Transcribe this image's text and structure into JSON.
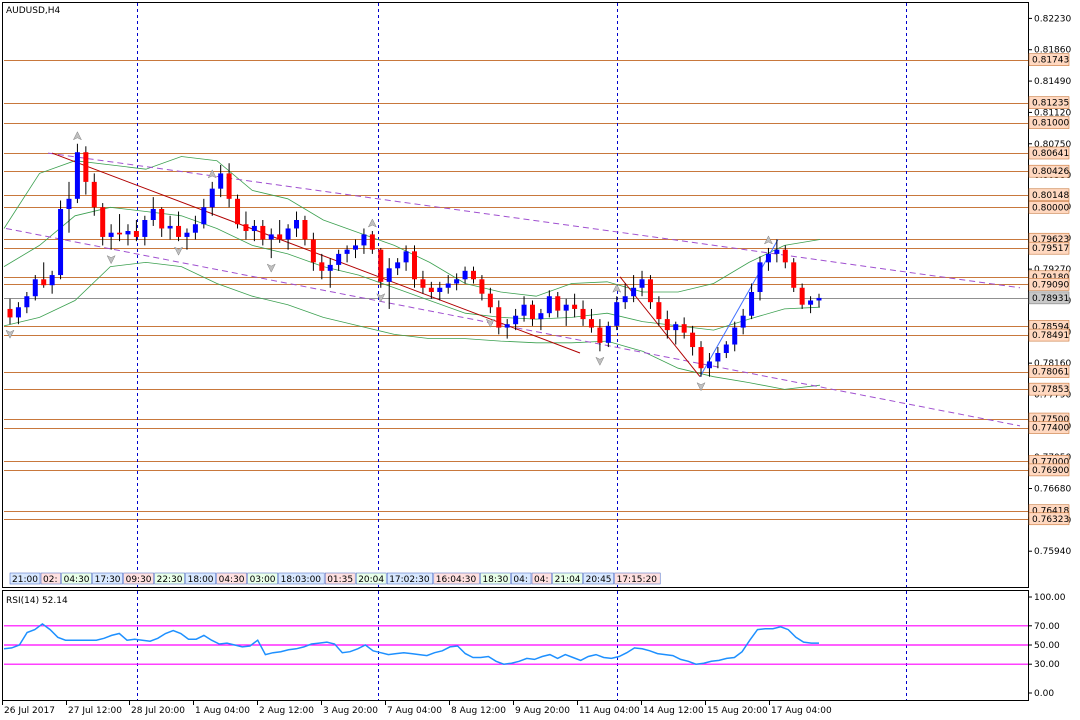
{
  "window": {
    "title": "AUDUSD,H4"
  },
  "colors": {
    "bull": "#0000ff",
    "bear": "#ff0000",
    "hline": "#c8783c",
    "channel": "#a050d0",
    "bands": "#3ca050",
    "trend_down": "#b00000",
    "trend_up": "#4070ff",
    "grid": "#0000cc",
    "rsi_line": "#1e90ff",
    "rsi_levels": "#ff00ff",
    "box_fill": "#ffd8c0",
    "bid_box": "#c8c8c8"
  },
  "chart_data": [
    {
      "type": "candlestick",
      "title": "AUDUSD,H4",
      "ylim": [
        0.756,
        0.824
      ],
      "x_range": [
        0,
        1000
      ],
      "price_axis_ticks": [
        "0.82230",
        "0.81860",
        "0.81490",
        "0.81120",
        "0.80750",
        "0.80380",
        "0.80010",
        "0.79640",
        "0.79270",
        "0.78900",
        "0.78530",
        "0.78160",
        "0.77790",
        "0.77420",
        "0.77050",
        "0.76680",
        "0.76310",
        "0.75940"
      ],
      "time_axis_labels": [
        "26 Jul 2017",
        "27 Jul 12:00",
        "28 Jul 20:00",
        "1 Aug 04:00",
        "2 Aug 12:00",
        "3 Aug 20:00",
        "7 Aug 04:00",
        "8 Aug 12:00",
        "9 Aug 20:00",
        "11 Aug 04:00",
        "14 Aug 12:00",
        "15 Aug 20:00",
        "17 Aug 04:00"
      ],
      "horizontal_levels": [
        "0.81743",
        "0.81235",
        "0.81000",
        "0.80641",
        "0.80426",
        "0.80148",
        "0.80000",
        "0.79623",
        "0.79517",
        "0.79180",
        "0.79090",
        "0.78931",
        "0.78594",
        "0.78491",
        "0.78061",
        "0.77853",
        "0.77500",
        "0.77400",
        "0.77000",
        "0.76900",
        "0.76418",
        "0.76323"
      ],
      "current_price": "0.78931",
      "candles": [
        [
          0.788,
          0.7892,
          0.7862,
          0.787
        ],
        [
          0.787,
          0.7888,
          0.7862,
          0.7882
        ],
        [
          0.7882,
          0.79,
          0.7875,
          0.7895
        ],
        [
          0.7895,
          0.792,
          0.789,
          0.7915
        ],
        [
          0.7915,
          0.7935,
          0.7905,
          0.7908
        ],
        [
          0.7908,
          0.7925,
          0.7898,
          0.792
        ],
        [
          0.792,
          0.8008,
          0.7915,
          0.7998
        ],
        [
          0.7998,
          0.803,
          0.797,
          0.801
        ],
        [
          0.801,
          0.8075,
          0.8005,
          0.8065
        ],
        [
          0.8065,
          0.8072,
          0.8015,
          0.803
        ],
        [
          0.803,
          0.804,
          0.799,
          0.8
        ],
        [
          0.8,
          0.8005,
          0.7955,
          0.7965
        ],
        [
          0.7965,
          0.798,
          0.795,
          0.797
        ],
        [
          0.797,
          0.7992,
          0.796,
          0.7968
        ],
        [
          0.7968,
          0.798,
          0.7955,
          0.7972
        ],
        [
          0.7972,
          0.7985,
          0.796,
          0.7965
        ],
        [
          0.7965,
          0.799,
          0.7955,
          0.7985
        ],
        [
          0.7985,
          0.8012,
          0.7978,
          0.7998
        ],
        [
          0.7998,
          0.8,
          0.7965,
          0.7975
        ],
        [
          0.7975,
          0.799,
          0.7962,
          0.7978
        ],
        [
          0.7978,
          0.7995,
          0.796,
          0.7965
        ],
        [
          0.7965,
          0.7975,
          0.795,
          0.797
        ],
        [
          0.797,
          0.799,
          0.7962,
          0.798
        ],
        [
          0.798,
          0.801,
          0.7975,
          0.8
        ],
        [
          0.8,
          0.803,
          0.799,
          0.8022
        ],
        [
          0.8022,
          0.805,
          0.8012,
          0.804
        ],
        [
          0.804,
          0.8052,
          0.8,
          0.801
        ],
        [
          0.801,
          0.8015,
          0.7975,
          0.798
        ],
        [
          0.798,
          0.7995,
          0.7962,
          0.7972
        ],
        [
          0.7972,
          0.7985,
          0.796,
          0.7978
        ],
        [
          0.7978,
          0.7985,
          0.7955,
          0.7962
        ],
        [
          0.7962,
          0.7975,
          0.794,
          0.7968
        ],
        [
          0.7968,
          0.7985,
          0.7958,
          0.7962
        ],
        [
          0.7962,
          0.798,
          0.795,
          0.7975
        ],
        [
          0.7975,
          0.7995,
          0.7965,
          0.7985
        ],
        [
          0.7985,
          0.799,
          0.7955,
          0.7962
        ],
        [
          0.7962,
          0.797,
          0.7925,
          0.7935
        ],
        [
          0.7935,
          0.7945,
          0.7915,
          0.7925
        ],
        [
          0.7925,
          0.794,
          0.7905,
          0.7932
        ],
        [
          0.7932,
          0.795,
          0.7925,
          0.7945
        ],
        [
          0.7945,
          0.7955,
          0.7935,
          0.795
        ],
        [
          0.795,
          0.7962,
          0.794,
          0.7955
        ],
        [
          0.7955,
          0.7975,
          0.7945,
          0.7968
        ],
        [
          0.7968,
          0.7972,
          0.7945,
          0.795
        ],
        [
          0.795,
          0.7952,
          0.7905,
          0.7912
        ],
        [
          0.7912,
          0.794,
          0.788,
          0.7928
        ],
        [
          0.7928,
          0.794,
          0.792,
          0.7935
        ],
        [
          0.7935,
          0.7955,
          0.7925,
          0.7948
        ],
        [
          0.7948,
          0.7955,
          0.7905,
          0.7915
        ],
        [
          0.7915,
          0.7925,
          0.7898,
          0.7905
        ],
        [
          0.7905,
          0.7912,
          0.7892,
          0.79
        ],
        [
          0.79,
          0.7912,
          0.789,
          0.7905
        ],
        [
          0.7905,
          0.792,
          0.7898,
          0.791
        ],
        [
          0.791,
          0.7922,
          0.7902,
          0.7915
        ],
        [
          0.7915,
          0.793,
          0.791,
          0.7925
        ],
        [
          0.7925,
          0.793,
          0.791,
          0.7915
        ],
        [
          0.7915,
          0.792,
          0.789,
          0.7898
        ],
        [
          0.7898,
          0.7905,
          0.7875,
          0.7882
        ],
        [
          0.7882,
          0.789,
          0.785,
          0.7858
        ],
        [
          0.7858,
          0.7868,
          0.7845,
          0.7862
        ],
        [
          0.7862,
          0.788,
          0.7855,
          0.7872
        ],
        [
          0.7872,
          0.7895,
          0.7865,
          0.7885
        ],
        [
          0.7885,
          0.789,
          0.786,
          0.7868
        ],
        [
          0.7868,
          0.788,
          0.7855,
          0.7875
        ],
        [
          0.7875,
          0.7902,
          0.787,
          0.7895
        ],
        [
          0.7895,
          0.79,
          0.787,
          0.7878
        ],
        [
          0.7878,
          0.7892,
          0.786,
          0.7885
        ],
        [
          0.7885,
          0.7898,
          0.787,
          0.788
        ],
        [
          0.788,
          0.789,
          0.786,
          0.7868
        ],
        [
          0.7868,
          0.788,
          0.7852,
          0.7858
        ],
        [
          0.7858,
          0.7868,
          0.783,
          0.784
        ],
        [
          0.784,
          0.7865,
          0.7835,
          0.786
        ],
        [
          0.786,
          0.7895,
          0.7855,
          0.7888
        ],
        [
          0.7888,
          0.791,
          0.788,
          0.7895
        ],
        [
          0.7895,
          0.792,
          0.7888,
          0.7905
        ],
        [
          0.7905,
          0.7925,
          0.7895,
          0.7915
        ],
        [
          0.7915,
          0.792,
          0.788,
          0.7888
        ],
        [
          0.7888,
          0.7895,
          0.786,
          0.7868
        ],
        [
          0.7868,
          0.7878,
          0.7845,
          0.7855
        ],
        [
          0.7855,
          0.7865,
          0.7838,
          0.7862
        ],
        [
          0.7862,
          0.787,
          0.7845,
          0.7852
        ],
        [
          0.7852,
          0.786,
          0.7825,
          0.7835
        ],
        [
          0.7835,
          0.7842,
          0.78,
          0.781
        ],
        [
          0.781,
          0.7828,
          0.78,
          0.7818
        ],
        [
          0.7818,
          0.7835,
          0.781,
          0.7828
        ],
        [
          0.7828,
          0.7842,
          0.7822,
          0.7838
        ],
        [
          0.7838,
          0.7865,
          0.783,
          0.7858
        ],
        [
          0.7858,
          0.788,
          0.785,
          0.7872
        ],
        [
          0.7872,
          0.791,
          0.7868,
          0.79
        ],
        [
          0.79,
          0.7942,
          0.789,
          0.7935
        ],
        [
          0.7935,
          0.7952,
          0.7925,
          0.7945
        ],
        [
          0.7945,
          0.7962,
          0.7935,
          0.795
        ],
        [
          0.795,
          0.7955,
          0.7928,
          0.7935
        ],
        [
          0.7935,
          0.794,
          0.79,
          0.7905
        ],
        [
          0.7905,
          0.791,
          0.788,
          0.7885
        ],
        [
          0.7885,
          0.7895,
          0.7875,
          0.789
        ],
        [
          0.789,
          0.7898,
          0.7882,
          0.7893
        ]
      ],
      "bollinger": {
        "upper": [
          0.7975,
          0.804,
          0.8055,
          0.805,
          0.8045,
          0.806,
          0.8055,
          0.802,
          0.801,
          0.7985,
          0.797,
          0.7955,
          0.7935,
          0.791,
          0.79,
          0.7895,
          0.791,
          0.7912,
          0.79,
          0.79,
          0.791,
          0.7935,
          0.7955,
          0.7962
        ],
        "middle": [
          0.793,
          0.7955,
          0.799,
          0.8,
          0.7995,
          0.799,
          0.7975,
          0.7955,
          0.7945,
          0.793,
          0.792,
          0.7905,
          0.789,
          0.7875,
          0.787,
          0.7868,
          0.787,
          0.7875,
          0.7865,
          0.786,
          0.7855,
          0.7868,
          0.788,
          0.7882
        ],
        "lower": [
          0.786,
          0.787,
          0.789,
          0.793,
          0.7935,
          0.793,
          0.791,
          0.7895,
          0.7885,
          0.787,
          0.786,
          0.785,
          0.7845,
          0.7845,
          0.7842,
          0.784,
          0.784,
          0.7842,
          0.783,
          0.781,
          0.78,
          0.7793,
          0.7785,
          0.779
        ]
      }
    },
    {
      "type": "line",
      "title": "RSI(14) 52.14",
      "ylim": [
        0,
        100
      ],
      "tick_labels": [
        "100.00",
        "70.00",
        "50.00",
        "30.00",
        "0.00"
      ],
      "levels": [
        70,
        50,
        30
      ],
      "values": [
        46,
        47,
        50,
        63,
        66,
        72,
        66,
        58,
        55,
        55,
        55,
        55,
        55,
        57,
        60,
        62,
        55,
        56,
        55,
        54,
        57,
        62,
        65,
        62,
        56,
        56,
        60,
        55,
        51,
        52,
        50,
        48,
        49,
        55,
        40,
        42,
        43,
        45,
        46,
        48,
        51,
        52,
        53,
        51,
        42,
        43,
        46,
        50,
        44,
        42,
        40,
        41,
        42,
        41,
        40,
        39,
        42,
        44,
        48,
        49,
        41,
        37,
        37,
        38,
        33,
        30,
        31,
        33,
        36,
        35,
        38,
        40,
        36,
        40,
        37,
        34,
        38,
        40,
        37,
        36,
        38,
        42,
        47,
        46,
        44,
        41,
        40,
        39,
        35,
        33,
        30,
        31,
        33,
        34,
        36,
        37,
        43,
        55,
        66,
        67,
        67,
        69,
        66,
        58,
        53,
        52,
        52
      ]
    }
  ],
  "bid_label": "0.78931",
  "period_separator_times": [
    "21:00",
    "02:",
    "04:30",
    "17:30",
    "09:30",
    "22:30",
    "18:00",
    "04:30",
    "03:00",
    "18:03:00",
    "01:35",
    "20:04",
    "17:02:30",
    "16:04:30",
    "18:30",
    "04:",
    "04:",
    "21:04",
    "20:45",
    "17:15:20"
  ]
}
